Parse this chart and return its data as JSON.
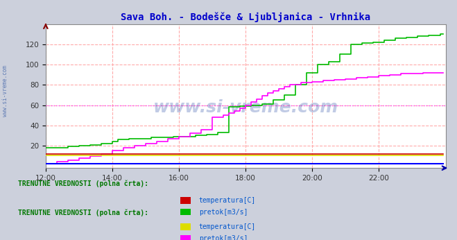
{
  "title": "Sava Boh. - Bodešče & Ljubljanica - Vrhnika",
  "title_color": "#0000cc",
  "bg_color": "#ccd0dc",
  "plot_bg_color": "#ffffff",
  "grid_color": "#ffaaaa",
  "watermark": "www.si-vreme.com",
  "watermark_color": "#3355aa",
  "xlim": [
    0,
    144
  ],
  "ylim": [
    -2,
    140
  ],
  "yticks": [
    20,
    40,
    60,
    80,
    100,
    120
  ],
  "xtick_labels": [
    "12:00",
    "14:00",
    "16:00",
    "18:00",
    "20:00",
    "22:00"
  ],
  "xtick_positions": [
    0,
    24,
    48,
    72,
    96,
    120
  ],
  "hline_y": 60,
  "hline_color": "#ff44ff",
  "legend1_title": "TRENUTNE VREDNOSTI (polna črta):",
  "legend2_title": "TRENUTNE VREDNOSTI (polna črta):",
  "legend1_items": [
    {
      "label": "temperatura[C]",
      "color": "#cc0000"
    },
    {
      "label": "pretok[m3/s]",
      "color": "#00bb00"
    }
  ],
  "legend2_items": [
    {
      "label": "temperatura[C]",
      "color": "#dddd00"
    },
    {
      "label": "pretok[m3/s]",
      "color": "#ff00ff"
    }
  ],
  "sava_temp_color": "#cc0000",
  "sava_flow_color": "#00bb00",
  "ljub_temp_color": "#dddd00",
  "ljub_flow_color": "#ff00ff",
  "blue_line_color": "#0000ff",
  "sidebar_text_color": "#4466aa",
  "sidebar_text": "www.si-vreme.com",
  "legend_text_color": "#0055cc",
  "legend_title_color": "#007700"
}
